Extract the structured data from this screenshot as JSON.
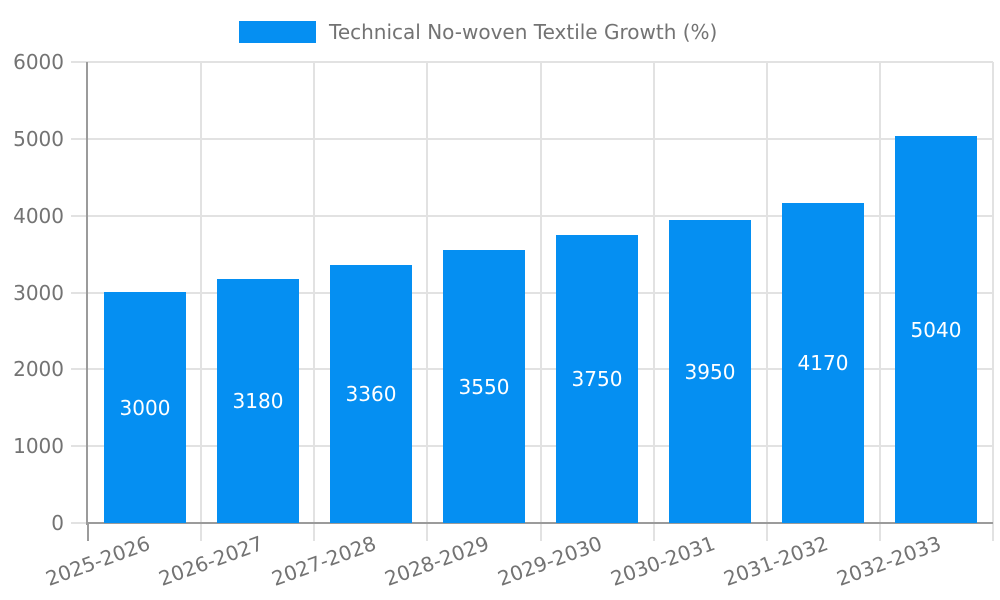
{
  "chart_data": {
    "type": "bar",
    "title": "Technical No-woven Textile Growth (%)",
    "categories": [
      "2025-2026",
      "2026-2027",
      "2027-2028",
      "2028-2029",
      "2029-2030",
      "2030-2031",
      "2031-2032",
      "2032-2033"
    ],
    "values": [
      3000,
      3180,
      3360,
      3550,
      3750,
      3950,
      4170,
      5040
    ],
    "value_labels": [
      "3000",
      "3180",
      "3360",
      "3550",
      "3750",
      "3950",
      "4170",
      "5040"
    ],
    "xlabel": "",
    "ylabel": "",
    "ylim": [
      0,
      6000
    ],
    "yticks": [
      0,
      1000,
      2000,
      3000,
      4000,
      5000,
      6000
    ],
    "ytick_labels": [
      "0",
      "1000",
      "2000",
      "3000",
      "4000",
      "5000",
      "6000"
    ],
    "grid": true,
    "legend_position": "top-center",
    "x_label_rotation_deg": -20,
    "colors": {
      "bar": "#058ff2",
      "bar_value_text": "#ffffff",
      "tick_label": "#737373",
      "legend_text": "#737373",
      "grid_line": "#e2e2e2",
      "axis_line": "#9b9b9b",
      "background": "#ffffff"
    }
  }
}
